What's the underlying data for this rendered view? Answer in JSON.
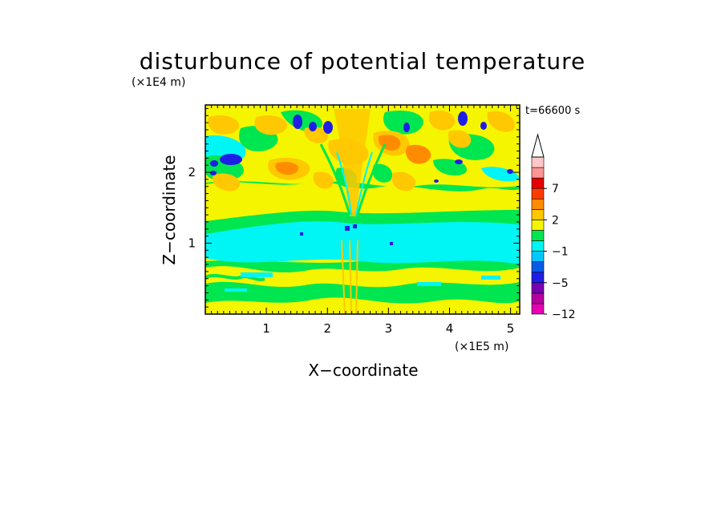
{
  "chart_data": {
    "type": "heatmap",
    "title": "disturbunce of potential temperature",
    "xlabel": "X−coordinate",
    "ylabel": "Z−coordinate",
    "x_unit": "(×1E5 m)",
    "y_unit": "(×1E4 m)",
    "time_label": "t=66600 s",
    "xlim": [
      0,
      5.15
    ],
    "ylim": [
      0,
      2.95
    ],
    "x_ticks": [
      {
        "value": 1,
        "label": "1"
      },
      {
        "value": 2,
        "label": "2"
      },
      {
        "value": 3,
        "label": "3"
      },
      {
        "value": 4,
        "label": "4"
      },
      {
        "value": 5,
        "label": "5"
      }
    ],
    "y_ticks": [
      {
        "value": 1,
        "label": "1"
      },
      {
        "value": 2,
        "label": "2"
      }
    ],
    "grid": false,
    "colorbar": {
      "position": "right",
      "levels": [
        -12,
        -9,
        -7,
        -5,
        -3,
        -2,
        -1,
        0,
        1,
        2,
        3,
        5,
        7,
        9,
        11
      ],
      "labels": [
        {
          "value": -12,
          "label": "−12"
        },
        {
          "value": -5,
          "label": "−5"
        },
        {
          "value": -1,
          "label": "−1"
        },
        {
          "value": 2,
          "label": "2"
        },
        {
          "value": 7,
          "label": "7"
        }
      ],
      "colors": [
        "#e600b4",
        "#b4009f",
        "#7800b4",
        "#1e1ee6",
        "#0a5ae6",
        "#00c8ff",
        "#00f5f5",
        "#00e650",
        "#f5f500",
        "#ffc800",
        "#ff8c00",
        "#ff3c00",
        "#e60000",
        "#ff9696",
        "#ffc8c8"
      ],
      "extend": "max"
    },
    "field_description_bands": [
      {
        "z_range": [
          0.0,
          0.8
        ],
        "dominant": "green/yellow alternating, small cyan patches"
      },
      {
        "z_range": [
          0.8,
          1.3
        ],
        "dominant": "cyan"
      },
      {
        "z_range": [
          1.3,
          1.9
        ],
        "dominant": "green and yellow with orange plumes near x=2.4"
      },
      {
        "z_range": [
          1.9,
          2.95
        ],
        "dominant": "yellow/orange cells with scattered blue and cyan blobs"
      }
    ]
  }
}
